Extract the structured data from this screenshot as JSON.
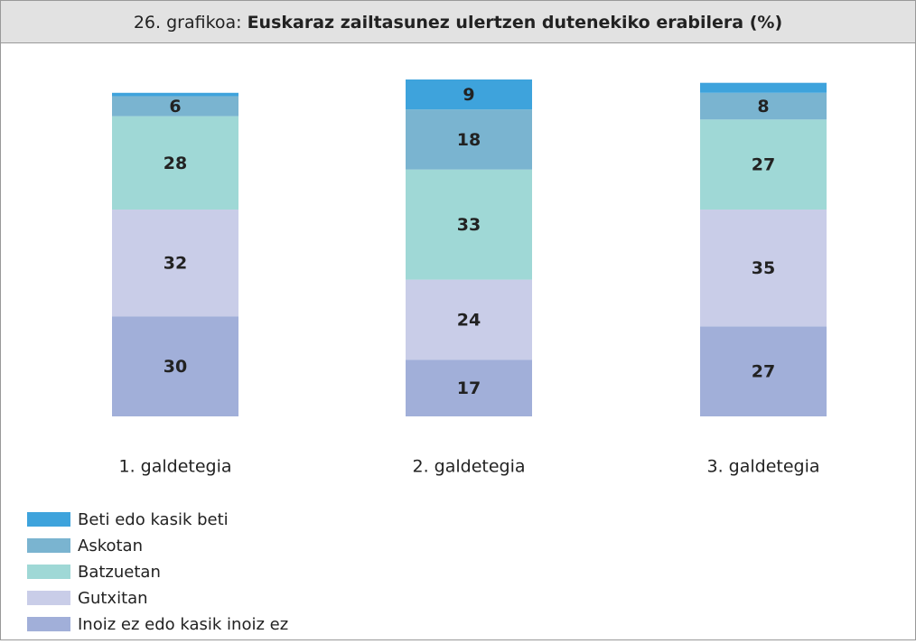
{
  "chart_data": {
    "type": "stacked_bar",
    "title_prefix": "26. grafikoa:",
    "title": "Euskaraz zailtasunez ulertzen dutenekiko erabilera (%)",
    "categories": [
      "1. galdetegia",
      "2. galdetegia",
      "3. galdetegia"
    ],
    "ylim": [
      0,
      101
    ],
    "series": [
      {
        "name": "Inoiz ez edo kasik inoiz ez",
        "color": "#a1afd9",
        "values": [
          30,
          17,
          27
        ]
      },
      {
        "name": "Gutxitan",
        "color": "#c9cde8",
        "values": [
          32,
          24,
          35
        ]
      },
      {
        "name": "Batzuetan",
        "color": "#9fd8d6",
        "values": [
          28,
          33,
          27
        ]
      },
      {
        "name": "Askotan",
        "color": "#7ab4d0",
        "values": [
          6,
          18,
          8
        ]
      },
      {
        "name": "Beti edo kasik beti",
        "color": "#3ea3dc",
        "values": [
          1,
          9,
          3
        ]
      }
    ]
  }
}
